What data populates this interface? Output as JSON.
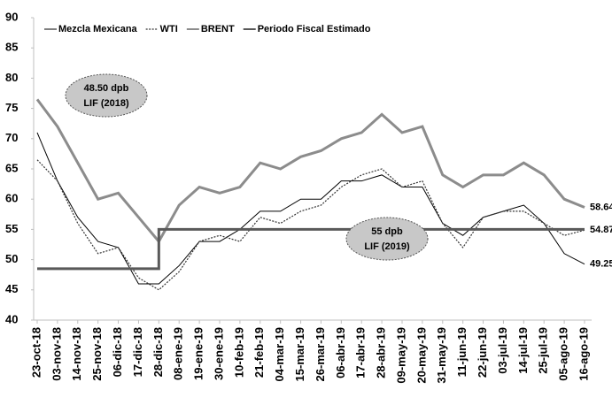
{
  "chart_data": {
    "type": "line",
    "categories": [
      "23-oct-18",
      "03-nov-18",
      "14-nov-18",
      "25-nov-18",
      "06-dic-18",
      "17-dic-18",
      "28-dic-18",
      "08-ene-19",
      "19-ene-19",
      "30-ene-19",
      "10-feb-19",
      "21-feb-19",
      "04-mar-19",
      "15-mar-19",
      "26-mar-19",
      "06-abr-19",
      "17-abr-19",
      "28-abr-19",
      "09-may-19",
      "20-may-19",
      "31-may-19",
      "11-jun-19",
      "22-jun-19",
      "03-jul-19",
      "14-jul-19",
      "25-jul-19",
      "05-ago-19",
      "16-ago-19"
    ],
    "series": [
      {
        "name": "Mezcla Mexicana",
        "color": "#000000",
        "style": "solid",
        "width": 1,
        "values": [
          71,
          63,
          57,
          53,
          52,
          46,
          46,
          49,
          53,
          53,
          55,
          58,
          58,
          60,
          60,
          63,
          63,
          64,
          62,
          62,
          56,
          54,
          57,
          58,
          59,
          56,
          51,
          49.25
        ]
      },
      {
        "name": "WTI",
        "color": "#333333",
        "style": "dotted",
        "width": 1.2,
        "values": [
          66.5,
          63,
          56,
          51,
          52,
          47,
          45,
          48,
          53,
          54,
          53,
          57,
          56,
          58,
          59,
          62,
          64,
          65,
          62,
          63,
          56,
          52,
          57,
          58,
          58,
          56,
          54,
          54.87
        ]
      },
      {
        "name": "BRENT",
        "color": "#8c8c8c",
        "style": "solid",
        "width": 3,
        "values": [
          76.5,
          72,
          66,
          60,
          61,
          57,
          53,
          59,
          62,
          61,
          62,
          66,
          65,
          67,
          68,
          70,
          71,
          74,
          71,
          72,
          64,
          62,
          64,
          64,
          66,
          64,
          60,
          58.64
        ]
      },
      {
        "name": "Periodo Fiscal Estimado",
        "color": "#595959",
        "style": "step",
        "width": 3,
        "values": [
          48.5,
          48.5,
          48.5,
          48.5,
          48.5,
          48.5,
          55,
          55,
          55,
          55,
          55,
          55,
          55,
          55,
          55,
          55,
          55,
          55,
          55,
          55,
          55,
          55,
          55,
          55,
          55,
          55,
          55,
          55
        ]
      }
    ],
    "annotations": [
      {
        "lines": [
          "48.50 dpb",
          "LIF (2018)"
        ]
      },
      {
        "lines": [
          "55 dpb",
          "LIF (2019)"
        ]
      }
    ],
    "ylim": [
      40,
      90
    ],
    "yticks": [
      40,
      45,
      50,
      55,
      60,
      65,
      70,
      75,
      80,
      85,
      90
    ],
    "grid": false,
    "legend": "top"
  }
}
